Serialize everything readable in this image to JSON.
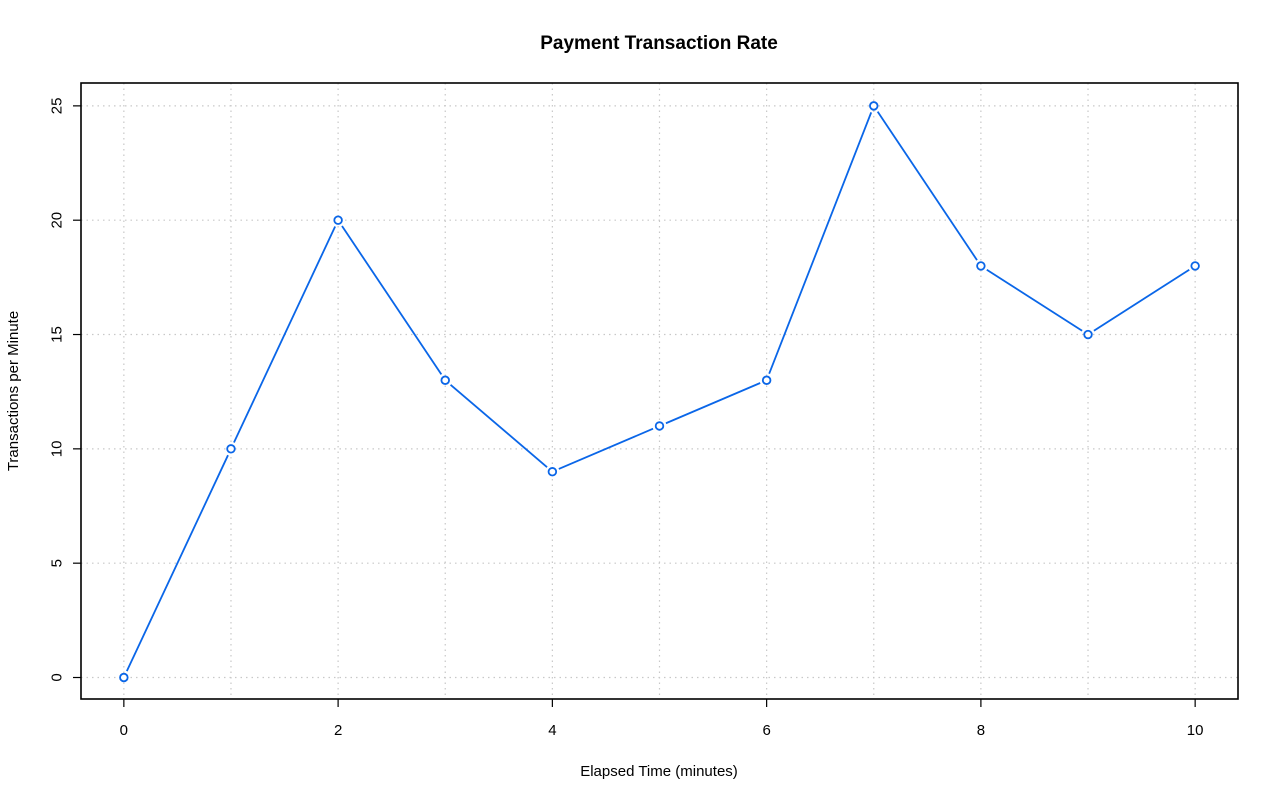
{
  "chart_data": {
    "type": "line",
    "title": "Payment Transaction Rate",
    "xlabel": "Elapsed Time (minutes)",
    "ylabel": "Transactions per Minute",
    "x": [
      0,
      1,
      2,
      3,
      4,
      5,
      6,
      7,
      8,
      9,
      10
    ],
    "series": [
      {
        "values": [
          0,
          10,
          20,
          13,
          9,
          11,
          13,
          25,
          18,
          15,
          18
        ],
        "color": "#0a66e8"
      }
    ],
    "xlim": [
      -0.4,
      10.4
    ],
    "ylim": [
      -0.94,
      26.0
    ],
    "xticks": [
      0,
      2,
      4,
      6,
      8,
      10
    ],
    "yticks": [
      0,
      5,
      10,
      15,
      20,
      25
    ],
    "grid": true,
    "legend": "none"
  }
}
